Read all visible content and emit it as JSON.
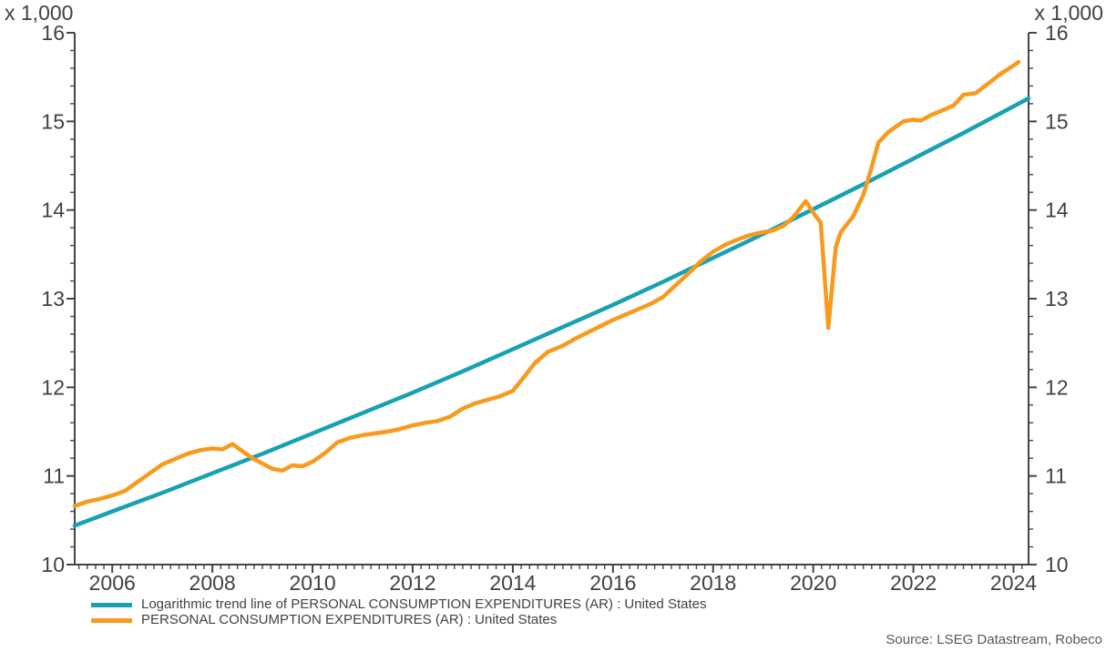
{
  "chart_data": {
    "type": "line",
    "title": "",
    "unit_label_left": "x 1,000",
    "unit_label_right": "x 1,000",
    "source": "Source: LSEG Datastream, Robeco",
    "x_range": [
      2005.25,
      2024.3
    ],
    "y_range": [
      10,
      16
    ],
    "x_ticks_major": [
      2006,
      2008,
      2010,
      2012,
      2014,
      2016,
      2018,
      2020,
      2022,
      2024
    ],
    "y_ticks_major": [
      10,
      11,
      12,
      13,
      14,
      15,
      16
    ],
    "x_minor_per_year": 6,
    "y_minor_per_unit": 5,
    "grid": false,
    "legend_position": "bottom-left",
    "axis_color": "#434547",
    "text_color": "#3e4247",
    "series": [
      {
        "name": "Logarithmic trend line of PERSONAL CONSUMPTION EXPENDITURES (AR) : United States",
        "color": "#17a1b3",
        "points": [
          [
            2005.25,
            10.44
          ],
          [
            2006,
            10.6
          ],
          [
            2007,
            10.81
          ],
          [
            2008,
            11.03
          ],
          [
            2009,
            11.25
          ],
          [
            2010,
            11.48
          ],
          [
            2011,
            11.71
          ],
          [
            2012,
            11.94
          ],
          [
            2013,
            12.18
          ],
          [
            2014,
            12.43
          ],
          [
            2015,
            12.68
          ],
          [
            2016,
            12.93
          ],
          [
            2017,
            13.19
          ],
          [
            2018,
            13.46
          ],
          [
            2019,
            13.73
          ],
          [
            2020,
            14.01
          ],
          [
            2021,
            14.29
          ],
          [
            2022,
            14.58
          ],
          [
            2023,
            14.87
          ],
          [
            2024,
            15.17
          ],
          [
            2024.3,
            15.26
          ]
        ]
      },
      {
        "name": "PERSONAL CONSUMPTION EXPENDITURES (AR) : United States",
        "color": "#f79a1e",
        "points": [
          [
            2005.25,
            10.66
          ],
          [
            2005.5,
            10.71
          ],
          [
            2005.75,
            10.74
          ],
          [
            2006,
            10.78
          ],
          [
            2006.25,
            10.83
          ],
          [
            2006.5,
            10.93
          ],
          [
            2006.75,
            11.03
          ],
          [
            2007,
            11.13
          ],
          [
            2007.25,
            11.19
          ],
          [
            2007.5,
            11.25
          ],
          [
            2007.75,
            11.29
          ],
          [
            2008,
            11.31
          ],
          [
            2008.2,
            11.3
          ],
          [
            2008.4,
            11.36
          ],
          [
            2008.6,
            11.28
          ],
          [
            2008.8,
            11.2
          ],
          [
            2009,
            11.14
          ],
          [
            2009.2,
            11.08
          ],
          [
            2009.4,
            11.06
          ],
          [
            2009.6,
            11.12
          ],
          [
            2009.8,
            11.11
          ],
          [
            2010,
            11.16
          ],
          [
            2010.25,
            11.26
          ],
          [
            2010.5,
            11.38
          ],
          [
            2010.75,
            11.43
          ],
          [
            2011,
            11.46
          ],
          [
            2011.25,
            11.48
          ],
          [
            2011.5,
            11.5
          ],
          [
            2011.75,
            11.53
          ],
          [
            2012,
            11.57
          ],
          [
            2012.25,
            11.6
          ],
          [
            2012.5,
            11.62
          ],
          [
            2012.75,
            11.67
          ],
          [
            2013,
            11.76
          ],
          [
            2013.25,
            11.82
          ],
          [
            2013.5,
            11.86
          ],
          [
            2013.75,
            11.9
          ],
          [
            2014,
            11.96
          ],
          [
            2014.2,
            12.1
          ],
          [
            2014.45,
            12.28
          ],
          [
            2014.7,
            12.4
          ],
          [
            2015,
            12.47
          ],
          [
            2015.25,
            12.55
          ],
          [
            2015.5,
            12.62
          ],
          [
            2015.75,
            12.69
          ],
          [
            2016,
            12.76
          ],
          [
            2016.25,
            12.82
          ],
          [
            2016.5,
            12.88
          ],
          [
            2016.75,
            12.94
          ],
          [
            2017,
            13.02
          ],
          [
            2017.25,
            13.15
          ],
          [
            2017.5,
            13.28
          ],
          [
            2017.75,
            13.42
          ],
          [
            2018,
            13.53
          ],
          [
            2018.25,
            13.61
          ],
          [
            2018.5,
            13.67
          ],
          [
            2018.75,
            13.72
          ],
          [
            2019,
            13.75
          ],
          [
            2019.2,
            13.77
          ],
          [
            2019.4,
            13.82
          ],
          [
            2019.6,
            13.92
          ],
          [
            2019.85,
            14.1
          ],
          [
            2020.05,
            13.93
          ],
          [
            2020.15,
            13.86
          ],
          [
            2020.3,
            12.67
          ],
          [
            2020.45,
            13.58
          ],
          [
            2020.55,
            13.75
          ],
          [
            2020.8,
            13.93
          ],
          [
            2021,
            14.17
          ],
          [
            2021.15,
            14.45
          ],
          [
            2021.3,
            14.76
          ],
          [
            2021.5,
            14.88
          ],
          [
            2021.65,
            14.94
          ],
          [
            2021.8,
            15.0
          ],
          [
            2022,
            15.02
          ],
          [
            2022.15,
            15.01
          ],
          [
            2022.35,
            15.07
          ],
          [
            2022.6,
            15.13
          ],
          [
            2022.8,
            15.18
          ],
          [
            2023,
            15.3
          ],
          [
            2023.25,
            15.32
          ],
          [
            2023.5,
            15.43
          ],
          [
            2023.75,
            15.54
          ],
          [
            2024,
            15.63
          ],
          [
            2024.1,
            15.67
          ]
        ]
      }
    ]
  }
}
